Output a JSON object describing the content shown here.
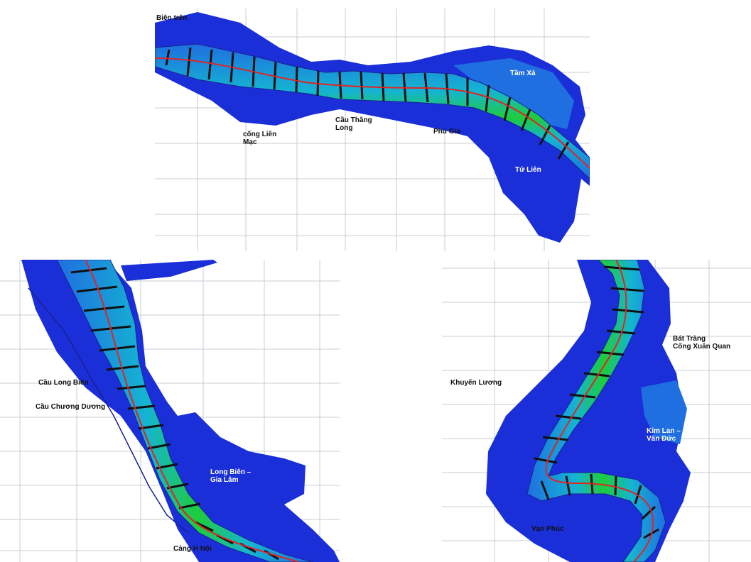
{
  "colors": {
    "grid": "#c8ccd6",
    "deep_blue": "#1a2fd8",
    "mid_blue": "#1f6fe0",
    "cyan": "#15b4d2",
    "green": "#1ecc3c",
    "yellow_green": "#b4e614",
    "centerline": "#e02424",
    "velocity_arrow": "#101010",
    "boundary": "#1a2090"
  },
  "panels": {
    "top": {
      "labels": {
        "bien_tren": "Biên trên",
        "cong_lien_mac": "cống Liên\nMạc",
        "cau_thang_long": "Cầu Thăng\nLong",
        "pho_gia": "Phú Gia",
        "tam_xa": "Tầm Xá",
        "tu_lien": "Tứ Liên"
      }
    },
    "left": {
      "labels": {
        "cau_long_bien": "Cầu Long Biên",
        "cau_chuong_duong": "Cầu Chương Dương",
        "long_bien_gia_lam": "Long Biên –\nGia Lâm",
        "cang_ha_noi": "Cảng H   Nội"
      }
    },
    "right": {
      "labels": {
        "bat_trang": "Bát Tràng\nCống Xuân Quan",
        "khuyen_luong": "Khuyến Lương",
        "kim_lan_van_duc": "Kim Lan –\nVăn Đức",
        "van_phuc": "Vạn Phúc"
      }
    }
  }
}
